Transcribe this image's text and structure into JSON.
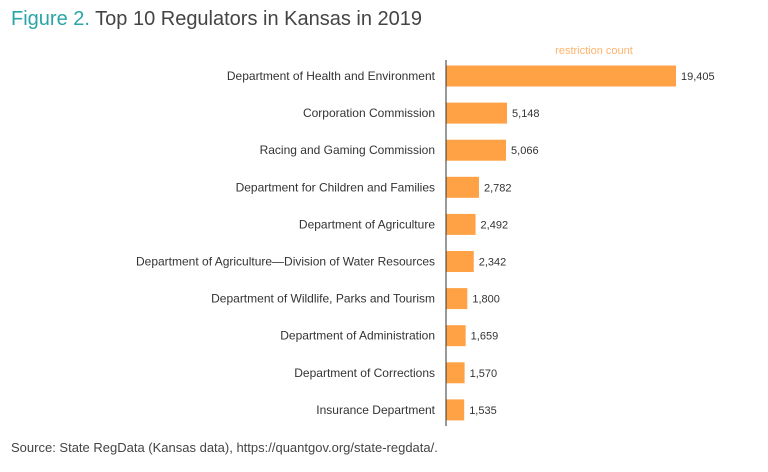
{
  "title_prefix": "Figure 2.",
  "title": "Top 10 Regulators in Kansas in 2019",
  "source": "Source: State RegData (Kansas data), https://quantgov.org/state-regdata/.",
  "chart_data": {
    "type": "bar",
    "orientation": "horizontal",
    "series_label": "restriction count",
    "categories": [
      "Department of Health and Environment",
      "Corporation Commission",
      "Racing and Gaming Commission",
      "Department for Children and Families",
      "Department of Agriculture",
      "Department of Agriculture—Division of Water Resources",
      "Department of Wildlife, Parks and Tourism",
      "Department of Administration",
      "Department of Corrections",
      "Insurance Department"
    ],
    "values": [
      19405,
      5148,
      5066,
      2782,
      2492,
      2342,
      1800,
      1659,
      1570,
      1535
    ],
    "value_labels": [
      "19,405",
      "5,148",
      "5,066",
      "2,782",
      "2,492",
      "2,342",
      "1,800",
      "1,659",
      "1,570",
      "1,535"
    ],
    "bar_color": "#ffa245",
    "label_color": "#ffb36b",
    "grid": false
  }
}
